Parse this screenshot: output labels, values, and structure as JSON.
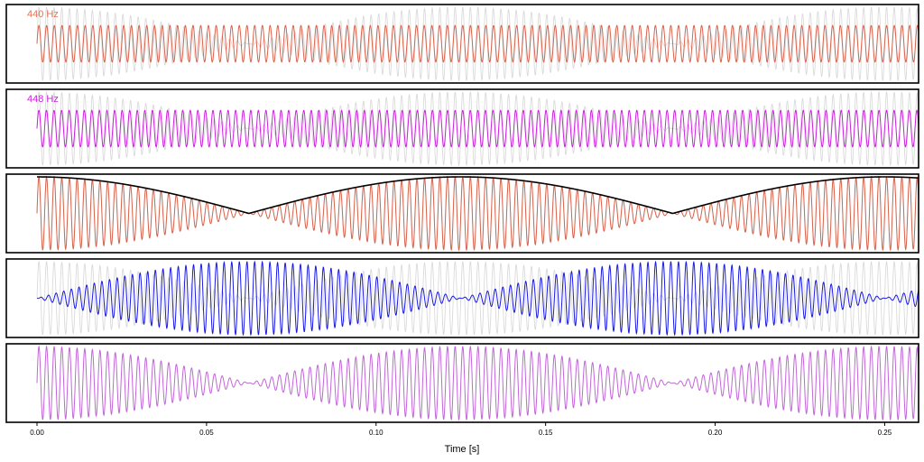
{
  "chart_data": {
    "type": "line",
    "xlabel": "Time [s]",
    "xlim": [
      0,
      0.26
    ],
    "xticks": [
      "0.00",
      "0.05",
      "0.10",
      "0.15",
      "0.20",
      "0.25"
    ],
    "ylim": [
      -2,
      2
    ],
    "beat_period_s": 0.125,
    "panels": [
      {
        "label": "440 Hz",
        "label_color": "#e0735c",
        "series": [
          {
            "role": "background",
            "color": "#d6d6d6",
            "formula": "sin(2π·440·t)+sin(2π·448·t)"
          },
          {
            "name": "440 Hz",
            "color": "#d9634c",
            "freq_hz": 440,
            "amplitude": 1,
            "formula": "sin(2π·440·t)"
          }
        ]
      },
      {
        "label": "448 Hz",
        "label_color": "#cc22dd",
        "series": [
          {
            "role": "background",
            "color": "#d6d6d6",
            "formula": "sin(2π·440·t)+sin(2π·448·t)"
          },
          {
            "name": "448 Hz",
            "color": "#cc22dd",
            "freq_hz": 448,
            "amplitude": 1,
            "formula": "sin(2π·448·t)"
          }
        ]
      },
      {
        "label": "",
        "series": [
          {
            "role": "background",
            "color": "#d6d6d6",
            "formula": "sin(2π·440·t)+sin(2π·448·t)"
          },
          {
            "name": "sum",
            "color": "#d9634c",
            "formula": "sin(2π·440·t)+sin(2π·448·t)"
          },
          {
            "name": "envelope",
            "color": "#000000",
            "formula": "2·|cos(2π·4·t)|"
          }
        ]
      },
      {
        "label": "",
        "series": [
          {
            "role": "background",
            "color": "#d6d6d6",
            "formula": "sin(2π·440·t)+sin(2π·448·t)"
          },
          {
            "name": "difference",
            "color": "#1a1ae6",
            "formula": "sin(2π·440·t)-sin(2π·448·t)"
          }
        ]
      },
      {
        "label": "",
        "series": [
          {
            "name": "sum",
            "color": "#c266d9",
            "formula": "sin(2π·440·t)+sin(2π·448·t)"
          }
        ]
      }
    ]
  }
}
